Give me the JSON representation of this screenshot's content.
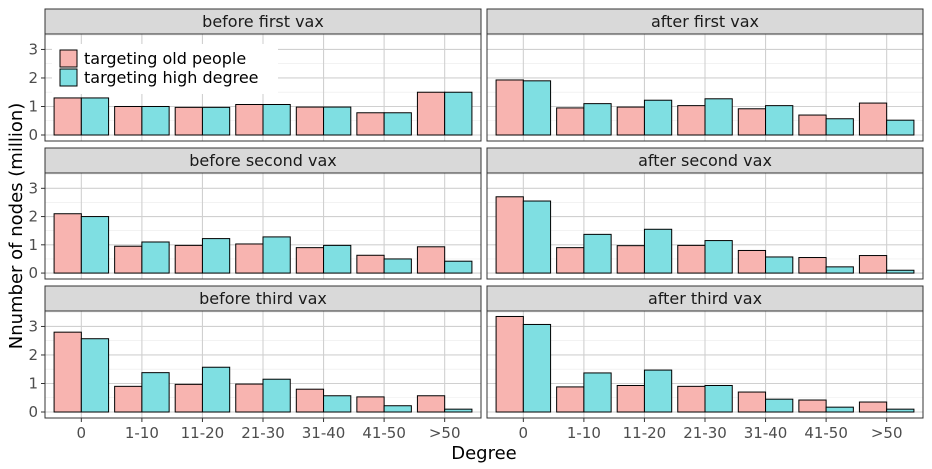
{
  "chart_data": {
    "type": "bar",
    "xlabel": "Degree",
    "ylabel": "Nnumber of nodes (million)",
    "categories": [
      "0",
      "1-10",
      "11-20",
      "21-30",
      "31-40",
      "41-50",
      ">50"
    ],
    "ylim": [
      0,
      3.5
    ],
    "yticks": [
      "0",
      "1",
      "2",
      "3"
    ],
    "grid": true,
    "legend_position": "top-left",
    "series_styles": [
      {
        "name": "targeting old people",
        "color": "#f8b4b0"
      },
      {
        "name": "targeting high degree",
        "color": "#7fdfe2"
      }
    ],
    "panels": [
      {
        "title": "before first vax",
        "series": [
          {
            "name": "targeting old people",
            "values": [
              1.3,
              1.0,
              0.97,
              1.07,
              0.98,
              0.78,
              1.5
            ]
          },
          {
            "name": "targeting high degree",
            "values": [
              1.3,
              1.0,
              0.97,
              1.07,
              0.98,
              0.78,
              1.5
            ]
          }
        ]
      },
      {
        "title": "after first vax",
        "series": [
          {
            "name": "targeting old people",
            "values": [
              1.93,
              0.95,
              0.98,
              1.03,
              0.92,
              0.7,
              1.12
            ]
          },
          {
            "name": "targeting high degree",
            "values": [
              1.9,
              1.1,
              1.22,
              1.27,
              1.03,
              0.57,
              0.52
            ]
          }
        ]
      },
      {
        "title": "before second vax",
        "series": [
          {
            "name": "targeting old people",
            "values": [
              2.1,
              0.95,
              0.98,
              1.03,
              0.9,
              0.63,
              0.93
            ]
          },
          {
            "name": "targeting high degree",
            "values": [
              2.0,
              1.1,
              1.22,
              1.28,
              0.98,
              0.5,
              0.42
            ]
          }
        ]
      },
      {
        "title": "after second vax",
        "series": [
          {
            "name": "targeting old people",
            "values": [
              2.7,
              0.9,
              0.97,
              0.98,
              0.8,
              0.55,
              0.62
            ]
          },
          {
            "name": "targeting high degree",
            "values": [
              2.55,
              1.37,
              1.55,
              1.15,
              0.57,
              0.22,
              0.1
            ]
          }
        ]
      },
      {
        "title": "before third vax",
        "series": [
          {
            "name": "targeting old people",
            "values": [
              2.8,
              0.9,
              0.97,
              0.98,
              0.8,
              0.53,
              0.57
            ]
          },
          {
            "name": "targeting high degree",
            "values": [
              2.57,
              1.38,
              1.57,
              1.15,
              0.57,
              0.22,
              0.1
            ]
          }
        ]
      },
      {
        "title": "after third vax",
        "series": [
          {
            "name": "targeting old people",
            "values": [
              3.35,
              0.88,
              0.93,
              0.9,
              0.7,
              0.42,
              0.35
            ]
          },
          {
            "name": "targeting high degree",
            "values": [
              3.07,
              1.37,
              1.47,
              0.93,
              0.45,
              0.17,
              0.1
            ]
          }
        ]
      }
    ]
  }
}
